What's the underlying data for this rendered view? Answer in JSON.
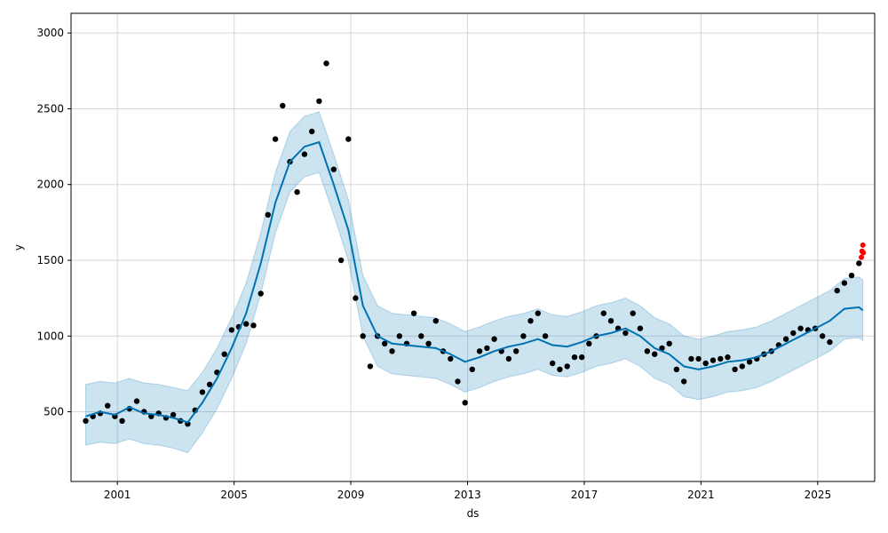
{
  "chart_data": {
    "type": "line",
    "title": "",
    "xlabel": "ds",
    "ylabel": "y",
    "x_type": "date",
    "xlim": [
      "1999-06-01",
      "2026-12-15"
    ],
    "ylim": [
      40,
      3130
    ],
    "x_ticks": [
      "2001",
      "2005",
      "2009",
      "2013",
      "2017",
      "2021",
      "2025"
    ],
    "y_ticks": [
      500,
      1000,
      1500,
      2000,
      2500,
      3000
    ],
    "grid": true,
    "legend": "none",
    "colors": {
      "observed": "#000000",
      "forecast": "#0072B2",
      "interval": "#0072B2",
      "changepoint_points": "#ff0000"
    },
    "series": [
      {
        "kind": "scatter",
        "color": "#000000",
        "points": [
          [
            "1999-12-01",
            440
          ],
          [
            "2000-03-01",
            470
          ],
          [
            "2000-06-01",
            490
          ],
          [
            "2000-09-01",
            540
          ],
          [
            "2000-12-01",
            470
          ],
          [
            "2001-03-01",
            440
          ],
          [
            "2001-06-01",
            520
          ],
          [
            "2001-09-01",
            570
          ],
          [
            "2001-12-01",
            500
          ],
          [
            "2002-03-01",
            470
          ],
          [
            "2002-06-01",
            490
          ],
          [
            "2002-09-01",
            460
          ],
          [
            "2002-12-01",
            480
          ],
          [
            "2003-03-01",
            440
          ],
          [
            "2003-06-01",
            420
          ],
          [
            "2003-09-01",
            510
          ],
          [
            "2003-12-01",
            630
          ],
          [
            "2004-03-01",
            680
          ],
          [
            "2004-06-01",
            760
          ],
          [
            "2004-09-01",
            880
          ],
          [
            "2004-12-01",
            1040
          ],
          [
            "2005-03-01",
            1060
          ],
          [
            "2005-06-01",
            1080
          ],
          [
            "2005-09-01",
            1070
          ],
          [
            "2005-12-01",
            1280
          ],
          [
            "2006-03-01",
            1800
          ],
          [
            "2006-06-01",
            2300
          ],
          [
            "2006-09-01",
            2520
          ],
          [
            "2006-12-01",
            2150
          ],
          [
            "2007-03-01",
            1950
          ],
          [
            "2007-06-01",
            2200
          ],
          [
            "2007-09-01",
            2350
          ],
          [
            "2007-12-01",
            2550
          ],
          [
            "2008-03-01",
            2800
          ],
          [
            "2008-06-01",
            2100
          ],
          [
            "2008-09-01",
            1500
          ],
          [
            "2008-12-01",
            2300
          ],
          [
            "2009-03-01",
            1250
          ],
          [
            "2009-06-01",
            1000
          ],
          [
            "2009-09-01",
            800
          ],
          [
            "2009-12-01",
            1000
          ],
          [
            "2010-03-01",
            950
          ],
          [
            "2010-06-01",
            900
          ],
          [
            "2010-09-01",
            1000
          ],
          [
            "2010-12-01",
            950
          ],
          [
            "2011-03-01",
            1150
          ],
          [
            "2011-06-01",
            1000
          ],
          [
            "2011-09-01",
            950
          ],
          [
            "2011-12-01",
            1100
          ],
          [
            "2012-03-01",
            900
          ],
          [
            "2012-06-01",
            850
          ],
          [
            "2012-09-01",
            700
          ],
          [
            "2012-12-01",
            560
          ],
          [
            "2013-03-01",
            780
          ],
          [
            "2013-06-01",
            900
          ],
          [
            "2013-09-01",
            920
          ],
          [
            "2013-12-01",
            980
          ],
          [
            "2014-03-01",
            900
          ],
          [
            "2014-06-01",
            850
          ],
          [
            "2014-09-01",
            900
          ],
          [
            "2014-12-01",
            1000
          ],
          [
            "2015-03-01",
            1100
          ],
          [
            "2015-06-01",
            1150
          ],
          [
            "2015-09-01",
            1000
          ],
          [
            "2015-12-01",
            820
          ],
          [
            "2016-03-01",
            780
          ],
          [
            "2016-06-01",
            800
          ],
          [
            "2016-09-01",
            860
          ],
          [
            "2016-12-01",
            860
          ],
          [
            "2017-03-01",
            950
          ],
          [
            "2017-06-01",
            1000
          ],
          [
            "2017-09-01",
            1150
          ],
          [
            "2017-12-01",
            1100
          ],
          [
            "2018-03-01",
            1050
          ],
          [
            "2018-06-01",
            1020
          ],
          [
            "2018-09-01",
            1150
          ],
          [
            "2018-12-01",
            1050
          ],
          [
            "2019-03-01",
            900
          ],
          [
            "2019-06-01",
            880
          ],
          [
            "2019-09-01",
            920
          ],
          [
            "2019-12-01",
            950
          ],
          [
            "2020-03-01",
            780
          ],
          [
            "2020-06-01",
            700
          ],
          [
            "2020-09-01",
            850
          ],
          [
            "2020-12-01",
            850
          ],
          [
            "2021-03-01",
            820
          ],
          [
            "2021-06-01",
            840
          ],
          [
            "2021-09-01",
            850
          ],
          [
            "2021-12-01",
            860
          ],
          [
            "2022-03-01",
            780
          ],
          [
            "2022-06-01",
            800
          ],
          [
            "2022-09-01",
            830
          ],
          [
            "2022-12-01",
            850
          ],
          [
            "2023-03-01",
            880
          ],
          [
            "2023-06-01",
            900
          ],
          [
            "2023-09-01",
            940
          ],
          [
            "2023-12-01",
            980
          ],
          [
            "2024-03-01",
            1020
          ],
          [
            "2024-06-01",
            1050
          ],
          [
            "2024-09-01",
            1040
          ],
          [
            "2024-12-01",
            1050
          ],
          [
            "2025-03-01",
            1000
          ],
          [
            "2025-06-01",
            960
          ],
          [
            "2025-09-01",
            1300
          ],
          [
            "2025-12-01",
            1350
          ],
          [
            "2026-03-01",
            1400
          ],
          [
            "2026-06-01",
            1480
          ]
        ]
      },
      {
        "kind": "scatter",
        "color": "#ff0000",
        "points": [
          [
            "2026-07-01",
            1520
          ],
          [
            "2026-07-10",
            1560
          ],
          [
            "2026-07-20",
            1600
          ],
          [
            "2026-07-25",
            1550
          ]
        ]
      },
      {
        "kind": "line",
        "color": "#0072B2",
        "points": [
          [
            "1999-12-01",
            470
          ],
          [
            "2000-06-01",
            500
          ],
          [
            "2000-12-01",
            480
          ],
          [
            "2001-06-01",
            530
          ],
          [
            "2001-12-01",
            490
          ],
          [
            "2002-06-01",
            480
          ],
          [
            "2002-12-01",
            460
          ],
          [
            "2003-06-01",
            430
          ],
          [
            "2003-12-01",
            560
          ],
          [
            "2004-06-01",
            720
          ],
          [
            "2004-12-01",
            920
          ],
          [
            "2005-06-01",
            1150
          ],
          [
            "2005-12-01",
            1480
          ],
          [
            "2006-06-01",
            1880
          ],
          [
            "2006-12-01",
            2150
          ],
          [
            "2007-06-01",
            2250
          ],
          [
            "2007-12-01",
            2280
          ],
          [
            "2008-06-01",
            2000
          ],
          [
            "2008-12-01",
            1700
          ],
          [
            "2009-06-01",
            1200
          ],
          [
            "2009-12-01",
            1000
          ],
          [
            "2010-06-01",
            950
          ],
          [
            "2010-12-01",
            940
          ],
          [
            "2011-06-01",
            930
          ],
          [
            "2011-12-01",
            920
          ],
          [
            "2012-06-01",
            880
          ],
          [
            "2012-12-01",
            830
          ],
          [
            "2013-06-01",
            860
          ],
          [
            "2013-12-01",
            900
          ],
          [
            "2014-06-01",
            930
          ],
          [
            "2014-12-01",
            950
          ],
          [
            "2015-06-01",
            980
          ],
          [
            "2015-12-01",
            940
          ],
          [
            "2016-06-01",
            930
          ],
          [
            "2016-12-01",
            960
          ],
          [
            "2017-06-01",
            1000
          ],
          [
            "2017-12-01",
            1020
          ],
          [
            "2018-06-01",
            1050
          ],
          [
            "2018-12-01",
            1000
          ],
          [
            "2019-06-01",
            920
          ],
          [
            "2019-12-01",
            880
          ],
          [
            "2020-06-01",
            800
          ],
          [
            "2020-12-01",
            780
          ],
          [
            "2021-06-01",
            800
          ],
          [
            "2021-12-01",
            830
          ],
          [
            "2022-06-01",
            840
          ],
          [
            "2022-12-01",
            860
          ],
          [
            "2023-06-01",
            900
          ],
          [
            "2023-12-01",
            950
          ],
          [
            "2024-06-01",
            1000
          ],
          [
            "2024-12-01",
            1050
          ],
          [
            "2025-06-01",
            1100
          ],
          [
            "2025-12-01",
            1180
          ],
          [
            "2026-06-01",
            1190
          ],
          [
            "2026-07-20",
            1170
          ]
        ]
      },
      {
        "kind": "band",
        "color": "#0072B2",
        "points": [
          [
            "1999-12-01",
            280,
            680
          ],
          [
            "2000-06-01",
            300,
            700
          ],
          [
            "2000-12-01",
            290,
            690
          ],
          [
            "2001-06-01",
            320,
            720
          ],
          [
            "2001-12-01",
            290,
            690
          ],
          [
            "2002-06-01",
            280,
            680
          ],
          [
            "2002-12-01",
            260,
            660
          ],
          [
            "2003-06-01",
            230,
            640
          ],
          [
            "2003-12-01",
            360,
            760
          ],
          [
            "2004-06-01",
            520,
            920
          ],
          [
            "2004-12-01",
            720,
            1120
          ],
          [
            "2005-06-01",
            950,
            1350
          ],
          [
            "2005-12-01",
            1280,
            1680
          ],
          [
            "2006-06-01",
            1680,
            2080
          ],
          [
            "2006-12-01",
            1950,
            2350
          ],
          [
            "2007-06-01",
            2050,
            2450
          ],
          [
            "2007-12-01",
            2080,
            2480
          ],
          [
            "2008-06-01",
            1800,
            2200
          ],
          [
            "2008-12-01",
            1500,
            1900
          ],
          [
            "2009-06-01",
            1000,
            1400
          ],
          [
            "2009-12-01",
            800,
            1200
          ],
          [
            "2010-06-01",
            750,
            1150
          ],
          [
            "2010-12-01",
            740,
            1140
          ],
          [
            "2011-06-01",
            730,
            1130
          ],
          [
            "2011-12-01",
            720,
            1120
          ],
          [
            "2012-06-01",
            680,
            1080
          ],
          [
            "2012-12-01",
            630,
            1030
          ],
          [
            "2013-06-01",
            660,
            1060
          ],
          [
            "2013-12-01",
            700,
            1100
          ],
          [
            "2014-06-01",
            730,
            1130
          ],
          [
            "2014-12-01",
            750,
            1150
          ],
          [
            "2015-06-01",
            780,
            1180
          ],
          [
            "2015-12-01",
            740,
            1140
          ],
          [
            "2016-06-01",
            730,
            1130
          ],
          [
            "2016-12-01",
            760,
            1160
          ],
          [
            "2017-06-01",
            800,
            1200
          ],
          [
            "2017-12-01",
            820,
            1220
          ],
          [
            "2018-06-01",
            850,
            1250
          ],
          [
            "2018-12-01",
            800,
            1200
          ],
          [
            "2019-06-01",
            720,
            1120
          ],
          [
            "2019-12-01",
            680,
            1080
          ],
          [
            "2020-06-01",
            600,
            1000
          ],
          [
            "2020-12-01",
            580,
            980
          ],
          [
            "2021-06-01",
            600,
            1000
          ],
          [
            "2021-12-01",
            630,
            1030
          ],
          [
            "2022-06-01",
            640,
            1040
          ],
          [
            "2022-12-01",
            660,
            1060
          ],
          [
            "2023-06-01",
            700,
            1100
          ],
          [
            "2023-12-01",
            750,
            1150
          ],
          [
            "2024-06-01",
            800,
            1200
          ],
          [
            "2024-12-01",
            850,
            1250
          ],
          [
            "2025-06-01",
            900,
            1300
          ],
          [
            "2025-12-01",
            980,
            1380
          ],
          [
            "2026-06-01",
            990,
            1390
          ],
          [
            "2026-07-20",
            970,
            1370
          ]
        ]
      }
    ]
  }
}
